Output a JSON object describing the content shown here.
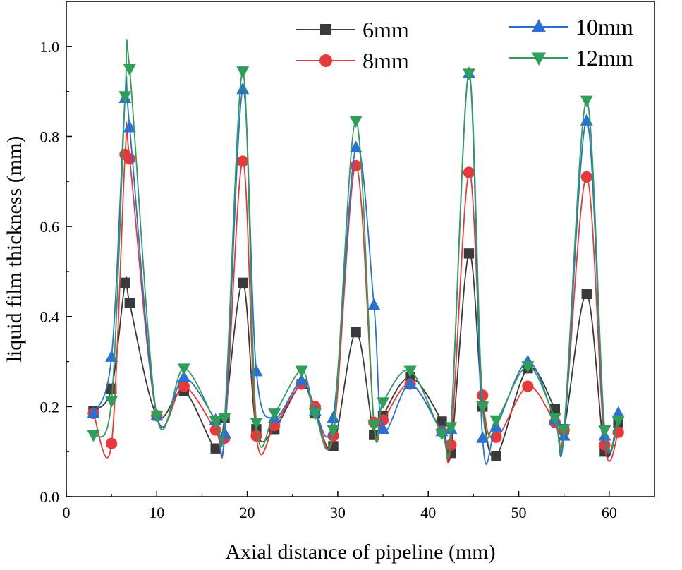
{
  "chart_data": {
    "type": "line",
    "title": "",
    "xlabel": "Axial distance of pipeline (mm)",
    "ylabel": "liquid film thickness (mm)",
    "xlim": [
      0,
      65
    ],
    "ylim": [
      0,
      1.1
    ],
    "xticks": [
      0,
      10,
      20,
      30,
      40,
      50,
      60
    ],
    "yticks": [
      0.0,
      0.2,
      0.4,
      0.6,
      0.8,
      1.0
    ],
    "xtick_labels": [
      "0",
      "10",
      "20",
      "30",
      "40",
      "50",
      "60"
    ],
    "ytick_labels": [
      "0.0",
      "0.2",
      "0.4",
      "0.6",
      "0.8",
      "1.0"
    ],
    "grid": false,
    "legend_position": "top-right",
    "series": [
      {
        "name": "6mm",
        "color": "#3a3a3a",
        "marker": "square",
        "x": [
          3,
          5,
          6.5,
          7,
          10,
          13,
          16.5,
          17.5,
          19.5,
          21,
          23,
          26,
          27.5,
          29.5,
          32,
          34,
          35,
          38,
          41.5,
          42.5,
          44.5,
          46,
          47.5,
          51,
          54,
          55,
          57.5,
          59.5,
          61
        ],
        "y": [
          0.19,
          0.24,
          0.475,
          0.43,
          0.18,
          0.235,
          0.107,
          0.175,
          0.475,
          0.15,
          0.15,
          0.25,
          0.185,
          0.112,
          0.365,
          0.137,
          0.18,
          0.265,
          0.167,
          0.097,
          0.54,
          0.2,
          0.09,
          0.285,
          0.195,
          0.15,
          0.45,
          0.1,
          0.165
        ]
      },
      {
        "name": "8mm",
        "color": "#e8393a",
        "marker": "circle",
        "x": [
          3,
          5,
          6.5,
          7,
          10,
          13,
          16.5,
          17.5,
          19.5,
          21,
          23,
          26,
          27.5,
          29.5,
          32,
          34,
          35,
          38,
          41.5,
          42.5,
          44.5,
          46,
          47.5,
          51,
          54,
          55,
          57.5,
          59.5,
          61
        ],
        "y": [
          0.185,
          0.118,
          0.76,
          0.75,
          0.18,
          0.245,
          0.148,
          0.13,
          0.745,
          0.135,
          0.158,
          0.25,
          0.2,
          0.135,
          0.735,
          0.165,
          0.17,
          0.25,
          0.145,
          0.115,
          0.72,
          0.225,
          0.132,
          0.245,
          0.165,
          0.148,
          0.71,
          0.115,
          0.143
        ]
      },
      {
        "name": "10mm",
        "color": "#2a6fd4",
        "marker": "triangle-up",
        "x": [
          3,
          5,
          6.5,
          7,
          10,
          13,
          16.5,
          17.5,
          19.5,
          21,
          23,
          26,
          27.5,
          29.5,
          32,
          34,
          35,
          38,
          41.5,
          42.5,
          44.5,
          46,
          47.5,
          51,
          54,
          55,
          57.5,
          59.5,
          61
        ],
        "y": [
          0.185,
          0.31,
          0.885,
          0.82,
          0.18,
          0.265,
          0.17,
          0.14,
          0.905,
          0.278,
          0.175,
          0.258,
          0.19,
          0.175,
          0.775,
          0.425,
          0.15,
          0.25,
          0.145,
          0.15,
          0.94,
          0.13,
          0.155,
          0.3,
          0.17,
          0.135,
          0.835,
          0.135,
          0.185
        ]
      },
      {
        "name": "12mm",
        "color": "#2e9e58",
        "marker": "triangle-down",
        "x": [
          3,
          5,
          6.5,
          7,
          10,
          13,
          16.5,
          17.5,
          19.5,
          21,
          23,
          26,
          27.5,
          29.5,
          32,
          34,
          35,
          38,
          41.5,
          42.5,
          44.5,
          46,
          47.5,
          51,
          54,
          55,
          57.5,
          59.5,
          61
        ],
        "y": [
          0.137,
          0.213,
          0.89,
          0.95,
          0.18,
          0.285,
          0.168,
          0.175,
          0.945,
          0.165,
          0.185,
          0.28,
          0.185,
          0.148,
          0.835,
          0.16,
          0.21,
          0.28,
          0.14,
          0.155,
          0.94,
          0.2,
          0.17,
          0.29,
          0.175,
          0.15,
          0.88,
          0.148,
          0.17
        ]
      }
    ]
  }
}
